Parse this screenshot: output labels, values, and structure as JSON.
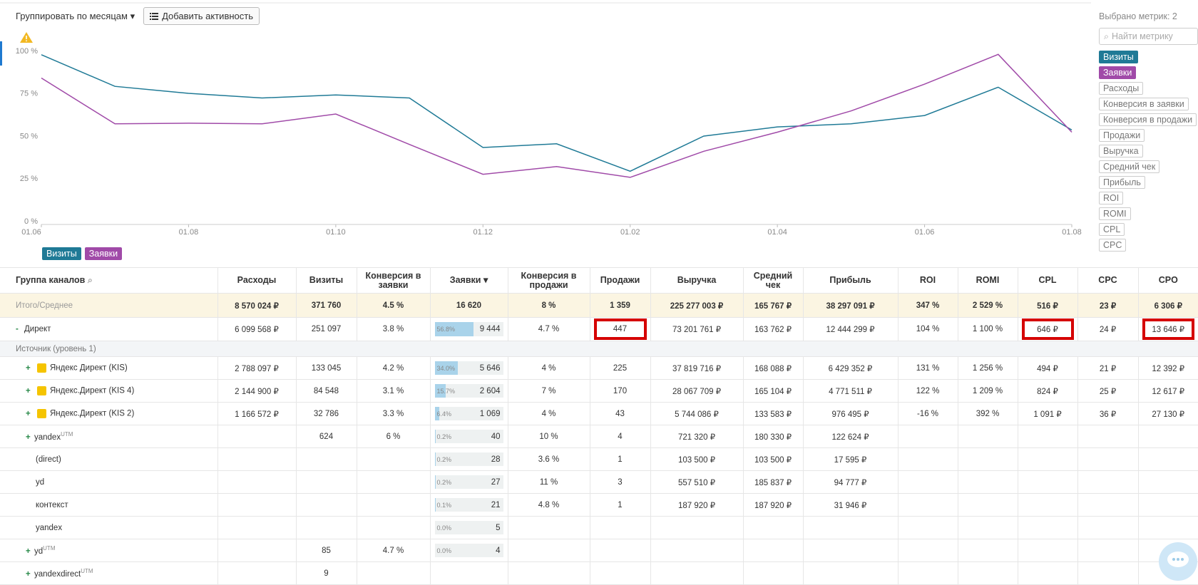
{
  "toolbar": {
    "group_by": "Группировать по месяцам",
    "add_activity": "Добавить активность"
  },
  "chart_data": {
    "type": "line",
    "categories": [
      "01.06",
      null,
      "01.08",
      null,
      "01.10",
      null,
      "01.12",
      null,
      "01.02",
      null,
      "01.04",
      null,
      "01.06",
      null,
      "01.08"
    ],
    "series": [
      {
        "name": "Визиты",
        "color": "#1f7a96",
        "values": [
          98,
          79.4,
          75.3,
          72.6,
          74.4,
          72.6,
          43.5,
          45.7,
          29.6,
          50.2,
          55.6,
          57.4,
          62.3,
          78.9,
          53.8
        ]
      },
      {
        "name": "Заявки",
        "color": "#a04aa8",
        "values": [
          84.3,
          57.4,
          57.8,
          57.4,
          63.2,
          45.3,
          27.8,
          32.3,
          26,
          41.3,
          52.5,
          65,
          80.7,
          98.2,
          52.5
        ]
      }
    ],
    "ylim": [
      0,
      100
    ],
    "yticks": [
      {
        "value": 0,
        "label": "0 %"
      },
      {
        "value": 25,
        "label": "25 %"
      },
      {
        "value": 50,
        "label": "50 %"
      },
      {
        "value": 75,
        "label": "75 %"
      },
      {
        "value": 100,
        "label": "100 %"
      }
    ]
  },
  "metrics_panel": {
    "selected": "Выбрано метрик: 2",
    "search_placeholder": "Найти метрику",
    "metrics": [
      {
        "name": "Визиты",
        "color": "#1f7a96"
      },
      {
        "name": "Заявки",
        "color": "#a04aa8"
      },
      {
        "name": "Расходы"
      },
      {
        "name": "Конверсия в заявки"
      },
      {
        "name": "Конверсия в продажи"
      },
      {
        "name": "Продажи"
      },
      {
        "name": "Выручка"
      },
      {
        "name": "Средний чек"
      },
      {
        "name": "Прибыль"
      },
      {
        "name": "ROI"
      },
      {
        "name": "ROMI"
      },
      {
        "name": "CPL"
      },
      {
        "name": "CPC"
      }
    ]
  },
  "table": {
    "columns": [
      "Группа каналов",
      "Расходы",
      "Визиты",
      "Конверсия в заявки",
      "Заявки",
      "Конверсия в продажи",
      "Продажи",
      "Выручка",
      "Средний чек",
      "Прибыль",
      "ROI",
      "ROMI",
      "CPL",
      "CPC",
      "CPO"
    ],
    "sort_column": 4,
    "rows": [
      {
        "label": "Итого/Среднее",
        "cells": [
          "8 570 024 ₽",
          "371 760",
          "4.5 %",
          "16 620",
          "8 %",
          "1 359",
          "225 277 003 ₽",
          "165 767 ₽",
          "38 297 091 ₽",
          "347 %",
          "2 529 %",
          "516 ₽",
          "23 ₽",
          "6 306 ₽"
        ]
      },
      {
        "toggle": "-",
        "label": "Директ",
        "highlight": [
          5,
          11,
          13
        ],
        "cells": [
          "6 099 568 ₽",
          "251 097",
          "3.8 %",
          {
            "share": {
              "value": 56.8,
              "label": "56.8%"
            },
            "value": "9 444"
          },
          "4.7 %",
          "447",
          "73 201 761 ₽",
          "163 762 ₽",
          "12 444 299 ₽",
          "104 %",
          "1 100 %",
          "646 ₽",
          "24 ₽",
          "13 646 ₽"
        ]
      },
      {
        "label": "Источник (уровень 1)"
      },
      {
        "toggle": "+",
        "icon": true,
        "label": "Яндекс Директ (KIS)",
        "cells": [
          "2 788 097 ₽",
          "133 045",
          "4.2 %",
          {
            "share": {
              "value": 34.0,
              "label": "34.0%"
            },
            "value": "5 646"
          },
          "4 %",
          "225",
          "37 819 716 ₽",
          "168 088 ₽",
          "6 429 352 ₽",
          "131 %",
          "1 256 %",
          "494 ₽",
          "21 ₽",
          "12 392 ₽"
        ]
      },
      {
        "toggle": "+",
        "icon": true,
        "label": "Яндекс.Директ (KIS 4)",
        "cells": [
          "2 144 900 ₽",
          "84 548",
          "3.1 %",
          {
            "share": {
              "value": 15.7,
              "label": "15.7%"
            },
            "value": "2 604"
          },
          "7 %",
          "170",
          "28 067 709 ₽",
          "165 104 ₽",
          "4 771 511 ₽",
          "122 %",
          "1 209 %",
          "824 ₽",
          "25 ₽",
          "12 617 ₽"
        ]
      },
      {
        "toggle": "+",
        "icon": true,
        "label": "Яндекс.Директ (KIS 2)",
        "cells": [
          "1 166 572 ₽",
          "32 786",
          "3.3 %",
          {
            "share": {
              "value": 6.4,
              "label": "6.4%"
            },
            "value": "1 069"
          },
          "4 %",
          "43",
          "5 744 086 ₽",
          "133 583 ₽",
          "976 495 ₽",
          "-16 %",
          "392 %",
          "1 091 ₽",
          "36 ₽",
          "27 130 ₽"
        ]
      },
      {
        "toggle": "+",
        "label": "yandex",
        "sup": "UTM",
        "cells": [
          null,
          "624",
          "6 %",
          {
            "share": {
              "value": 0.2,
              "label": "0.2%"
            },
            "value": "40"
          },
          "10 %",
          "4",
          "721 320 ₽",
          "180 330 ₽",
          "122 624 ₽",
          null,
          null,
          null,
          null,
          null
        ]
      },
      {
        "label": "(direct)",
        "cells": [
          null,
          null,
          null,
          {
            "share": {
              "value": 0.2,
              "label": "0.2%"
            },
            "value": "28"
          },
          "3.6 %",
          "1",
          "103 500 ₽",
          "103 500 ₽",
          "17 595 ₽",
          null,
          null,
          null,
          null,
          null
        ]
      },
      {
        "label": "yd",
        "cells": [
          null,
          null,
          null,
          {
            "share": {
              "value": 0.2,
              "label": "0.2%"
            },
            "value": "27"
          },
          "11 %",
          "3",
          "557 510 ₽",
          "185 837 ₽",
          "94 777 ₽",
          null,
          null,
          null,
          null,
          null
        ]
      },
      {
        "label": "контекст",
        "cells": [
          null,
          null,
          null,
          {
            "share": {
              "value": 0.1,
              "label": "0.1%"
            },
            "value": "21"
          },
          "4.8 %",
          "1",
          "187 920 ₽",
          "187 920 ₽",
          "31 946 ₽",
          null,
          null,
          null,
          null,
          null
        ]
      },
      {
        "label": "yandex",
        "cells": [
          null,
          null,
          null,
          {
            "share": {
              "value": 0.0,
              "label": "0.0%"
            },
            "value": "5"
          },
          null,
          null,
          null,
          null,
          null,
          null,
          null,
          null,
          null,
          null
        ]
      },
      {
        "toggle": "+",
        "label": "yd",
        "sup": "UTM",
        "cells": [
          null,
          "85",
          "4.7 %",
          {
            "share": {
              "value": 0.0,
              "label": "0.0%"
            },
            "value": "4"
          },
          null,
          null,
          null,
          null,
          null,
          null,
          null,
          null,
          null,
          null
        ]
      },
      {
        "toggle": "+",
        "label": "yandexdirect",
        "sup": "UTM",
        "cells": [
          null,
          "9",
          null,
          null,
          null,
          null,
          null,
          null,
          null,
          null,
          null,
          null,
          null,
          null
        ]
      }
    ]
  }
}
